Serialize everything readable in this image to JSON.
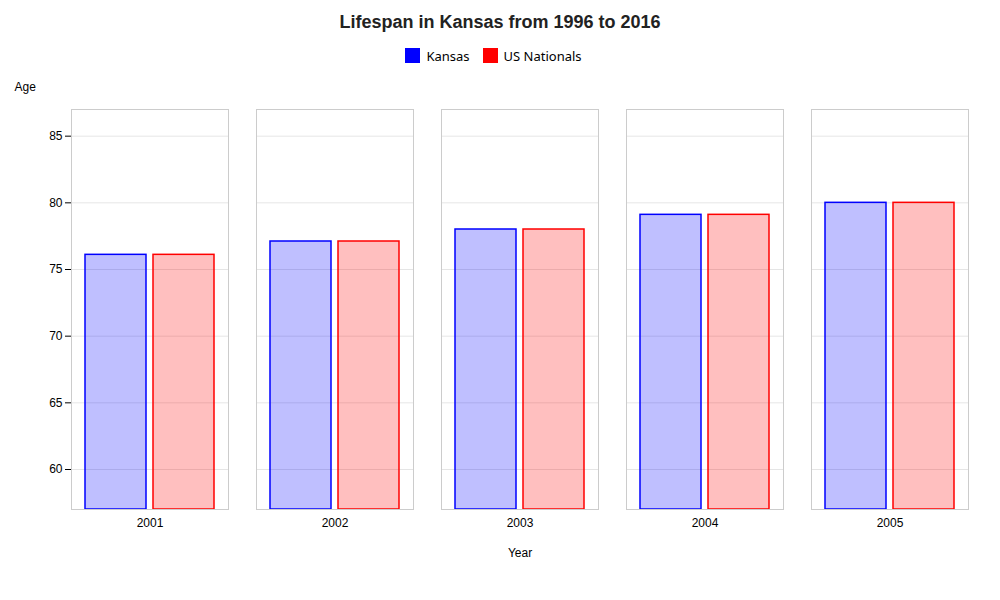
{
  "chart_data": {
    "type": "bar",
    "title": "Lifespan in Kansas from 1996 to 2016",
    "xlabel": "Year",
    "ylabel": "Age",
    "categories": [
      "2001",
      "2002",
      "2003",
      "2004",
      "2005"
    ],
    "series": [
      {
        "name": "Kansas",
        "color": "#0000ff",
        "values": [
          76.1,
          77.1,
          78.0,
          79.1,
          80.0
        ]
      },
      {
        "name": "US Nationals",
        "color": "#ff0000",
        "values": [
          76.1,
          77.1,
          78.0,
          79.1,
          80.0
        ]
      }
    ],
    "ylim": [
      57,
      87
    ],
    "yticks": [
      60,
      65,
      70,
      75,
      80,
      85
    ],
    "grid": true,
    "legend": "top"
  }
}
